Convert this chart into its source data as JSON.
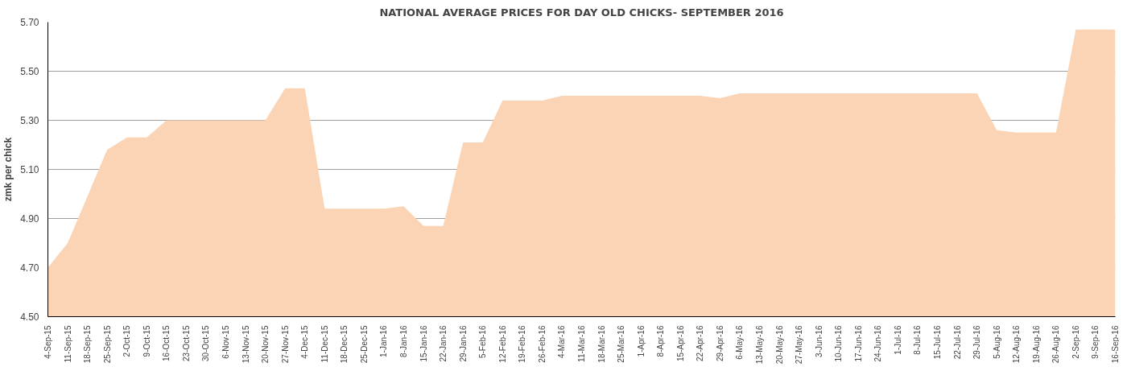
{
  "chart_data": {
    "type": "area",
    "title": "NATIONAL AVERAGE PRICES FOR DAY OLD CHICKS- SEPTEMBER 2016",
    "ylabel": "zmk per chick",
    "categories": [
      "4-Sep-15",
      "11-Sep-15",
      "18-Sep-15",
      "25-Sep-15",
      "2-Oct-15",
      "9-Oct-15",
      "16-Oct-15",
      "23-Oct-15",
      "30-Oct-15",
      "6-Nov-15",
      "13-Nov-15",
      "20-Nov-15",
      "27-Nov-15",
      "4-Dec-15",
      "11-Dec-15",
      "18-Dec-15",
      "25-Dec-15",
      "1-Jan-16",
      "8-Jan-16",
      "15-Jan-16",
      "22-Jan-16",
      "29-Jan-16",
      "5-Feb-16",
      "12-Feb-16",
      "19-Feb-16",
      "26-Feb-16",
      "4-Mar-16",
      "11-Mar-16",
      "18-Mar-16",
      "25-Mar-16",
      "1-Apr-16",
      "8-Apr-16",
      "15-Apr-16",
      "22-Apr-16",
      "29-Apr-16",
      "6-May-16",
      "13-May-16",
      "20-May-16",
      "27-May-16",
      "3-Jun-16",
      "10-Jun-16",
      "17-Jun-16",
      "24-Jun-16",
      "1-Jul-16",
      "8-Jul-16",
      "15-Jul-16",
      "22-Jul-16",
      "29-Jul-16",
      "5-Aug-16",
      "12-Aug-16",
      "19-Aug-16",
      "26-Aug-16",
      "2-Sep-16",
      "9-Sep-16",
      "16-Sep-16"
    ],
    "series": [
      {
        "color": "#fad4b4",
        "values": [
          4.7,
          4.8,
          4.99,
          5.18,
          5.23,
          5.23,
          5.3,
          5.3,
          5.3,
          5.3,
          5.3,
          5.3,
          5.43,
          5.43,
          4.94,
          4.94,
          4.94,
          4.94,
          4.95,
          4.87,
          4.87,
          5.21,
          5.21,
          5.38,
          5.38,
          5.38,
          5.4,
          5.4,
          5.4,
          5.4,
          5.4,
          5.4,
          5.4,
          5.4,
          5.39,
          5.41,
          5.41,
          5.41,
          5.41,
          5.41,
          5.41,
          5.41,
          5.41,
          5.41,
          5.41,
          5.41,
          5.41,
          5.41,
          5.26,
          5.25,
          5.25,
          5.25,
          5.67,
          5.67,
          5.67
        ]
      }
    ],
    "ylim": [
      4.5,
      5.7
    ],
    "yticks": [
      {
        "value": 4.5,
        "label": "4.50"
      },
      {
        "value": 4.7,
        "label": "4.70"
      },
      {
        "value": 4.9,
        "label": "4.90"
      },
      {
        "value": 5.1,
        "label": "5.10"
      },
      {
        "value": 5.3,
        "label": "5.30"
      },
      {
        "value": 5.5,
        "label": "5.50"
      },
      {
        "value": 5.7,
        "label": "5.70"
      }
    ],
    "grid": "y"
  }
}
